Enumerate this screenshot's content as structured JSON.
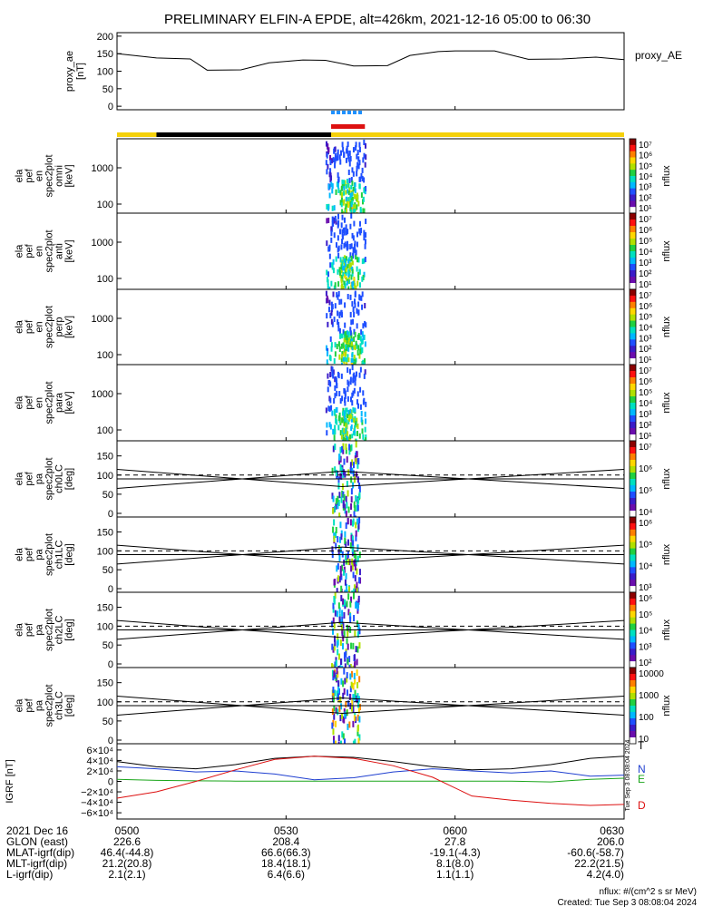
{
  "title": "PRELIMINARY ELFIN-A EPDE, alt=426km, 2021-12-16 05:00 to 06:30",
  "footer": {
    "units": "nflux: #/(cm^2 s sr MeV)",
    "created": "Created: Tue Sep  3 08:08:04 2024",
    "side_stamp": "Tue Sep 3 08:08:04 2024"
  },
  "colors": {
    "sunlit": "#f5d10a",
    "shadow": "#000000",
    "science_zone": "#dd1111",
    "fgm_marker": "#1e90ff",
    "component_N": "#1f3fd0",
    "component_E": "#1aa51a",
    "component_D": "#dd1111",
    "colorbar": [
      "#ffffff",
      "#6a0dad",
      "#3a1cc8",
      "#1f4fff",
      "#00b8ff",
      "#00e0c0",
      "#20d040",
      "#b0e000",
      "#ffd700",
      "#ff7f00",
      "#ff1010",
      "#8b0000"
    ]
  },
  "chart_data": [
    {
      "type": "line",
      "ylabel": "proxy_ae [nT]",
      "series_label": "proxy_ae",
      "legend_text": "proxy_AE",
      "ylim": [
        -10,
        210
      ],
      "yticks": [
        "200",
        "150",
        "100",
        "50",
        "0"
      ],
      "x": [
        "05:00",
        "05:07",
        "05:13",
        "05:16",
        "05:22",
        "05:27",
        "05:33",
        "05:37",
        "05:42",
        "05:48",
        "05:52",
        "05:57",
        "06:00",
        "06:07",
        "06:13",
        "06:19",
        "06:25",
        "06:30"
      ],
      "values": [
        150,
        138,
        135,
        103,
        104,
        124,
        132,
        131,
        115,
        116,
        145,
        156,
        158,
        158,
        134,
        135,
        140,
        133
      ]
    },
    {
      "type": "heatmap",
      "ylabel": [
        "ela",
        "pef",
        "en",
        "spec2plot",
        "omni",
        "[keV]"
      ],
      "scale": "log",
      "yticks": [
        "1000",
        "100"
      ],
      "colorbar_label": "nflux",
      "colorbar_ticks": [
        "10^7",
        "10^6",
        "10^5",
        "10^4",
        "10^3",
        "10^2",
        "10^1"
      ],
      "time_range": [
        "05:37",
        "05:44"
      ],
      "peak_time": "05:41",
      "peak_energy_keV": 100
    },
    {
      "type": "heatmap",
      "ylabel": [
        "ela",
        "pef",
        "en",
        "spec2plot",
        "anti",
        "[keV]"
      ],
      "scale": "log",
      "yticks": [
        "1000",
        "100"
      ],
      "colorbar_label": "nflux",
      "colorbar_ticks": [
        "10^7",
        "10^6",
        "10^5",
        "10^4",
        "10^3",
        "10^2",
        "10^1"
      ],
      "time_range": [
        "05:37",
        "05:44"
      ],
      "peak_time": "05:41",
      "peak_energy_keV": 100
    },
    {
      "type": "heatmap",
      "ylabel": [
        "ela",
        "pef",
        "en",
        "spec2plot",
        "perp",
        "[keV]"
      ],
      "scale": "log",
      "yticks": [
        "1000",
        "100"
      ],
      "colorbar_label": "nflux",
      "colorbar_ticks": [
        "10^7",
        "10^6",
        "10^5",
        "10^4",
        "10^3",
        "10^2",
        "10^1"
      ],
      "time_range": [
        "05:37",
        "05:44"
      ],
      "peak_time": "05:41",
      "peak_energy_keV": 100
    },
    {
      "type": "heatmap",
      "ylabel": [
        "ela",
        "pef",
        "en",
        "spec2plot",
        "para",
        "[keV]"
      ],
      "scale": "log",
      "yticks": [
        "1000",
        "100"
      ],
      "colorbar_label": "nflux",
      "colorbar_ticks": [
        "10^7",
        "10^6",
        "10^5",
        "10^4",
        "10^3",
        "10^2",
        "10^1"
      ],
      "time_range": [
        "05:37",
        "05:44"
      ],
      "peak_time": "05:41",
      "peak_energy_keV": 100
    },
    {
      "type": "heatmap",
      "ylabel": [
        "ela",
        "pef",
        "pa",
        "spec2plot",
        "ch0LC",
        "[deg]"
      ],
      "ylim": [
        0,
        180
      ],
      "yticks": [
        "150",
        "100",
        "50",
        "0"
      ],
      "colorbar_label": "nflux",
      "colorbar_ticks": [
        "10^7",
        "10^6",
        "10^5",
        "10^4"
      ],
      "time_range": [
        "05:38",
        "05:43"
      ],
      "loss_cone_line": {
        "x": [
          "05:00",
          "05:40",
          "06:30"
        ],
        "y": [
          115,
          70,
          115
        ]
      },
      "anti_loss_cone_line": {
        "x": [
          "05:00",
          "05:40",
          "06:30"
        ],
        "y": [
          65,
          110,
          65
        ]
      }
    },
    {
      "type": "heatmap",
      "ylabel": [
        "ela",
        "pef",
        "pa",
        "spec2plot",
        "ch1LC",
        "[deg]"
      ],
      "ylim": [
        0,
        180
      ],
      "yticks": [
        "150",
        "100",
        "50",
        "0"
      ],
      "colorbar_label": "nflux",
      "colorbar_ticks": [
        "10^6",
        "10^5",
        "10^4",
        "10^3"
      ],
      "time_range": [
        "05:38",
        "05:43"
      ],
      "loss_cone_line": {
        "x": [
          "05:00",
          "05:40",
          "06:30"
        ],
        "y": [
          115,
          70,
          115
        ]
      },
      "anti_loss_cone_line": {
        "x": [
          "05:00",
          "05:40",
          "06:30"
        ],
        "y": [
          65,
          110,
          65
        ]
      }
    },
    {
      "type": "heatmap",
      "ylabel": [
        "ela",
        "pef",
        "pa",
        "spec2plot",
        "ch2LC",
        "[deg]"
      ],
      "ylim": [
        0,
        180
      ],
      "yticks": [
        "150",
        "100",
        "50",
        "0"
      ],
      "colorbar_label": "nflux",
      "colorbar_ticks": [
        "10^6",
        "10^5",
        "10^4",
        "10^3",
        "10^2"
      ],
      "time_range": [
        "05:38",
        "05:43"
      ],
      "loss_cone_line": {
        "x": [
          "05:00",
          "05:40",
          "06:30"
        ],
        "y": [
          115,
          70,
          115
        ]
      },
      "anti_loss_cone_line": {
        "x": [
          "05:00",
          "05:40",
          "06:30"
        ],
        "y": [
          65,
          110,
          65
        ]
      }
    },
    {
      "type": "heatmap",
      "ylabel": [
        "ela",
        "pef",
        "pa",
        "spec2plot",
        "ch3LC",
        "[deg]"
      ],
      "ylim": [
        0,
        180
      ],
      "yticks": [
        "150",
        "100",
        "50",
        "0"
      ],
      "colorbar_label": "nflux",
      "colorbar_ticks": [
        "10000",
        "1000",
        "100",
        "10"
      ],
      "time_range": [
        "05:38",
        "05:43"
      ],
      "loss_cone_line": {
        "x": [
          "05:00",
          "05:40",
          "06:30"
        ],
        "y": [
          115,
          70,
          115
        ]
      },
      "anti_loss_cone_line": {
        "x": [
          "05:00",
          "05:40",
          "06:30"
        ],
        "y": [
          65,
          110,
          65
        ]
      }
    },
    {
      "type": "line",
      "ylabel": "IGRF [nT]",
      "ylim": [
        -65000,
        65000
      ],
      "yticks": [
        "6×10^4",
        "4×10^4",
        "2×10^4",
        "0",
        "−2×10^4",
        "−4×10^4",
        "−6×10^4"
      ],
      "series": [
        {
          "name": "T",
          "color": "#000000",
          "x": [
            "05:00",
            "05:07",
            "05:14",
            "05:21",
            "05:28",
            "05:35",
            "05:42",
            "05:49",
            "05:56",
            "06:03",
            "06:10",
            "06:17",
            "06:24",
            "06:30"
          ],
          "values": [
            38000,
            28000,
            24000,
            32000,
            44000,
            48000,
            46000,
            38000,
            28000,
            22000,
            24000,
            32000,
            44000,
            48000
          ]
        },
        {
          "name": "N",
          "color": "#1f3fd0",
          "x": [
            "05:00",
            "05:07",
            "05:14",
            "05:21",
            "05:28",
            "05:35",
            "05:42",
            "05:49",
            "05:56",
            "06:03",
            "06:10",
            "06:17",
            "06:24",
            "06:30"
          ],
          "values": [
            28000,
            24000,
            18000,
            20000,
            14000,
            3000,
            7000,
            18000,
            24000,
            20000,
            16000,
            20000,
            10000,
            12000
          ]
        },
        {
          "name": "E",
          "color": "#1aa51a",
          "x": [
            "05:00",
            "05:07",
            "05:14",
            "05:21",
            "05:28",
            "05:35",
            "05:42",
            "05:49",
            "05:56",
            "06:03",
            "06:10",
            "06:17",
            "06:24",
            "06:30"
          ],
          "values": [
            4000,
            2000,
            1000,
            500,
            500,
            500,
            500,
            500,
            500,
            500,
            500,
            -1000,
            4000,
            6000
          ]
        },
        {
          "name": "D",
          "color": "#dd1111",
          "x": [
            "05:00",
            "05:07",
            "05:14",
            "05:21",
            "05:28",
            "05:35",
            "05:42",
            "05:49",
            "05:56",
            "06:03",
            "06:10",
            "06:17",
            "06:24",
            "06:30"
          ],
          "values": [
            -32000,
            -20000,
            0,
            22000,
            42000,
            48000,
            44000,
            30000,
            8000,
            -28000,
            -36000,
            -42000,
            -46000,
            -44000
          ]
        }
      ]
    }
  ],
  "orbit_bars": {
    "sunlit_intervals": [
      [
        "05:00",
        "05:07"
      ],
      [
        "05:38",
        "06:30"
      ]
    ],
    "shadow_intervals": [
      [
        "05:07",
        "05:38"
      ]
    ],
    "science_zone_interval": [
      "05:38",
      "05:44"
    ],
    "fgm_interval": [
      "05:38",
      "05:44"
    ]
  },
  "ephemeris": {
    "ticks_x": [
      "05:00",
      "05:30",
      "06:00",
      "06:30"
    ],
    "tick_labels": [
      "0500",
      "0530",
      "0600",
      "0630"
    ],
    "rows": [
      {
        "label": "2021 Dec 16",
        "values": [
          "0500",
          "0530",
          "0600",
          "0630"
        ]
      },
      {
        "label": "GLON (east)",
        "values": [
          "226.6",
          "208.4",
          "27.8",
          "206.0"
        ]
      },
      {
        "label": "MLAT-igrf(dip)",
        "values": [
          "46.4(-44.8)",
          "66.6(66.3)",
          "-19.1(-4.3)",
          "-60.6(-58.7)"
        ]
      },
      {
        "label": "MLT-igrf(dip)",
        "values": [
          "21.2(20.8)",
          "18.4(18.1)",
          "8.1(8.0)",
          "22.2(21.5)"
        ]
      },
      {
        "label": "L-igrf(dip)",
        "values": [
          "2.1(2.1)",
          "6.4(6.6)",
          "1.1(1.1)",
          "4.2(4.0)"
        ]
      }
    ]
  }
}
